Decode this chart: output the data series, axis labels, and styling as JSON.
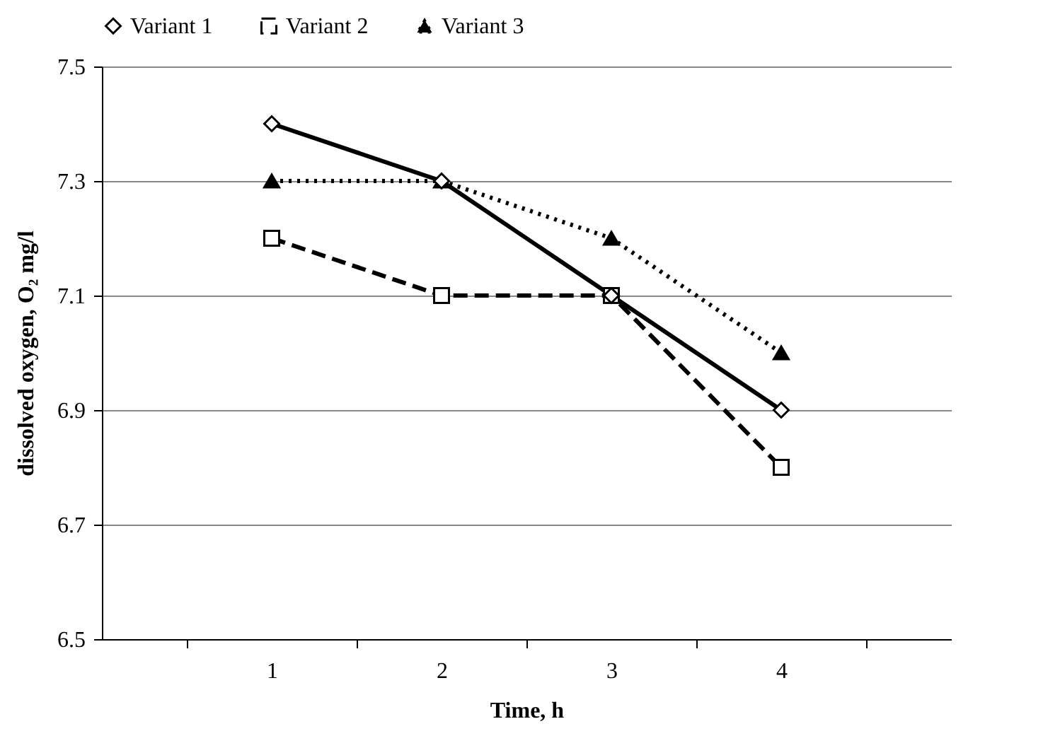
{
  "chart_data": {
    "type": "line",
    "xlabel": "Time, h",
    "ylabel": "dissolved oxygen, O₂ mg/l",
    "categories": [
      "1",
      "2",
      "3",
      "4"
    ],
    "series": [
      {
        "name": "Variant 1",
        "color": "#000000",
        "values": [
          7.4,
          7.3,
          7.1,
          6.9
        ],
        "marker": "diamond",
        "line_style": "solid"
      },
      {
        "name": "Variant 2",
        "color": "#000000",
        "values": [
          7.2,
          7.1,
          7.1,
          6.8
        ],
        "marker": "square",
        "line_style": "dashed"
      },
      {
        "name": "Variant 3",
        "color": "#000000",
        "values": [
          7.3,
          7.3,
          7.2,
          7.0
        ],
        "marker": "triangle",
        "line_style": "dotted"
      }
    ],
    "ylim": [
      6.5,
      7.5
    ],
    "yticks": [
      6.5,
      6.7,
      6.9,
      7.1,
      7.3,
      7.5
    ],
    "grid": "y",
    "legend": "top"
  }
}
